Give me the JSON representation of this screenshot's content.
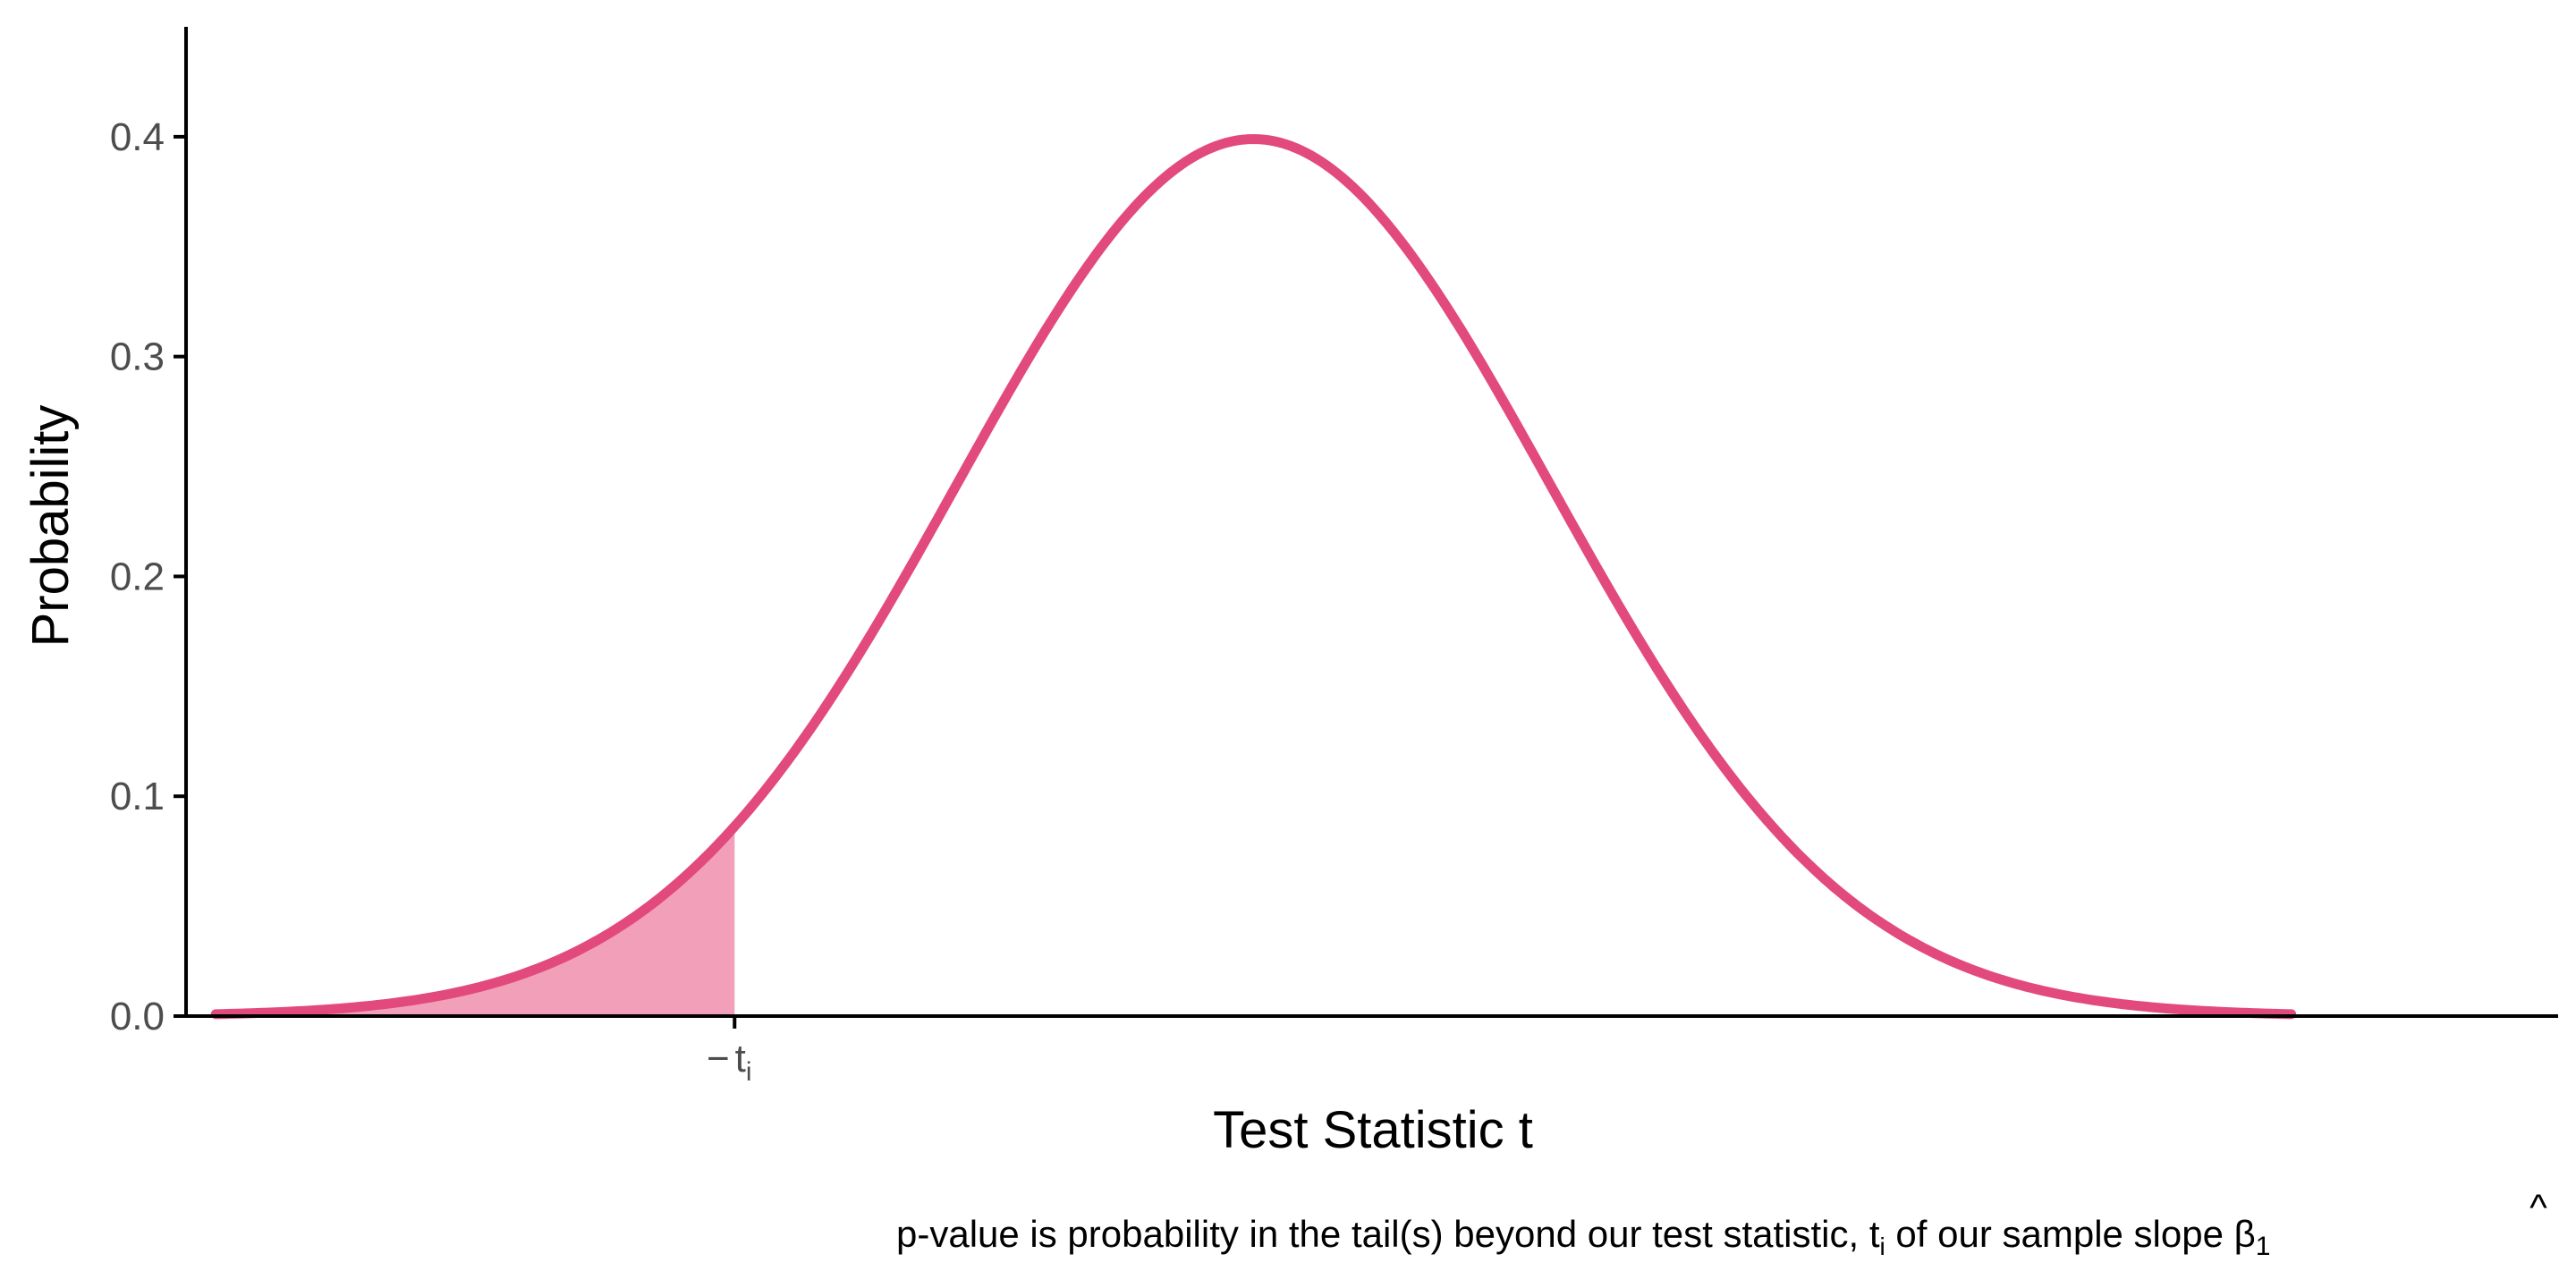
{
  "chart_data": {
    "type": "area",
    "distribution": "standard normal density",
    "xlabel": "Test Statistic t",
    "ylabel": "Probability",
    "caption": {
      "before_ti": "p-value is probability in the tail(s) beyond our test statistic, t",
      "ti_subscript": "i",
      "after_ti": " of our sample slope ",
      "beta": "β",
      "beta_hat": "^",
      "beta_subscript": "1"
    },
    "xlim": [
      -3.6,
      4.4
    ],
    "ylim": [
      0,
      0.45
    ],
    "curve_x_range": [
      -3.5,
      3.5
    ],
    "y_ticks": [
      0.0,
      0.1,
      0.2,
      0.3,
      0.4
    ],
    "y_tick_labels": [
      "0.0",
      "0.1",
      "0.2",
      "0.3",
      "0.4"
    ],
    "x_ticks": [
      {
        "value": -1.75,
        "minus": "−",
        "main": "t",
        "sub": "i"
      }
    ],
    "shaded_tail": {
      "from": -3.5,
      "to": -1.75
    },
    "colors": {
      "curve": "#e24a7d",
      "shade": "#f2a0b9",
      "axis": "#000000"
    },
    "grid": false
  }
}
